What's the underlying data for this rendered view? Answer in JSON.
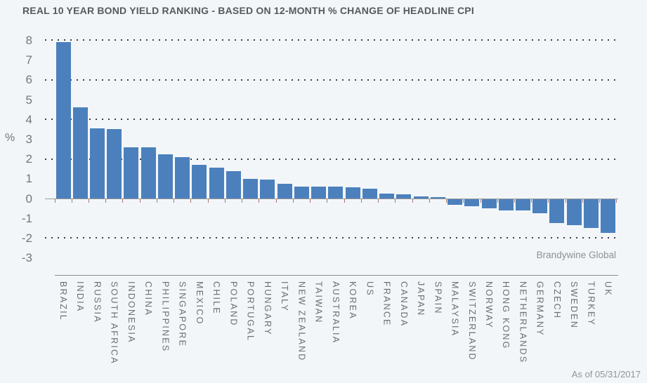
{
  "title": "REAL 10 YEAR BOND YIELD RANKING - BASED ON 12-MONTH % CHANGE OF HEADLINE CPI",
  "watermark": "Brandywine Global",
  "as_of": "As of 05/31/2017",
  "y_axis": {
    "unit_label": "%",
    "ticks": [
      8,
      7,
      6,
      5,
      4,
      3,
      2,
      1,
      0,
      -1,
      -2,
      -3
    ],
    "gridlines_at": [
      8,
      6,
      4,
      2,
      -2
    ]
  },
  "colors": {
    "background": "#f3f6f9",
    "bar": "#4b80bd",
    "grid_dots": "#3e3e3e",
    "zero_axis": "#9b9b9b",
    "axis_tick": "#a5796d",
    "title_text": "#57595b",
    "label_text": "#6d7073"
  },
  "chart_data": {
    "type": "bar",
    "title": "REAL 10 YEAR BOND YIELD RANKING - BASED ON 12-MONTH % CHANGE OF HEADLINE CPI",
    "xlabel": "",
    "ylabel": "%",
    "ylim": [
      -3.9,
      8.25
    ],
    "grid": "dotted horizontal every 2 units",
    "legend": "none",
    "categories": [
      "BRAZIL",
      "INDIA",
      "RUSSIA",
      "SOUTH AFRICA",
      "INDONESIA",
      "CHINA",
      "PHILIPPINES",
      "SINGAPORE",
      "MEXICO",
      "CHILE",
      "POLAND",
      "PORTUGAL",
      "HUNGARY",
      "ITALY",
      "NEW ZEALAND",
      "TAIWAN",
      "AUSTRALIA",
      "KOREA",
      "US",
      "FRANCE",
      "CANADA",
      "JAPAN",
      "SPAIN",
      "MALAYSIA",
      "SWITZERLAND",
      "NORWAY",
      "HONG KONG",
      "NETHERLANDS",
      "GERMANY",
      "CZECH",
      "SWEDEN",
      "TURKEY",
      "UK"
    ],
    "values": [
      7.9,
      4.6,
      3.55,
      3.5,
      2.6,
      2.6,
      2.25,
      2.1,
      1.7,
      1.55,
      1.4,
      1.0,
      0.95,
      0.75,
      0.6,
      0.6,
      0.6,
      0.55,
      0.5,
      0.25,
      0.2,
      0.12,
      0.06,
      -0.3,
      -0.35,
      -0.45,
      -0.55,
      -0.55,
      -0.7,
      -1.2,
      -1.3,
      -1.45,
      -1.7
    ]
  }
}
